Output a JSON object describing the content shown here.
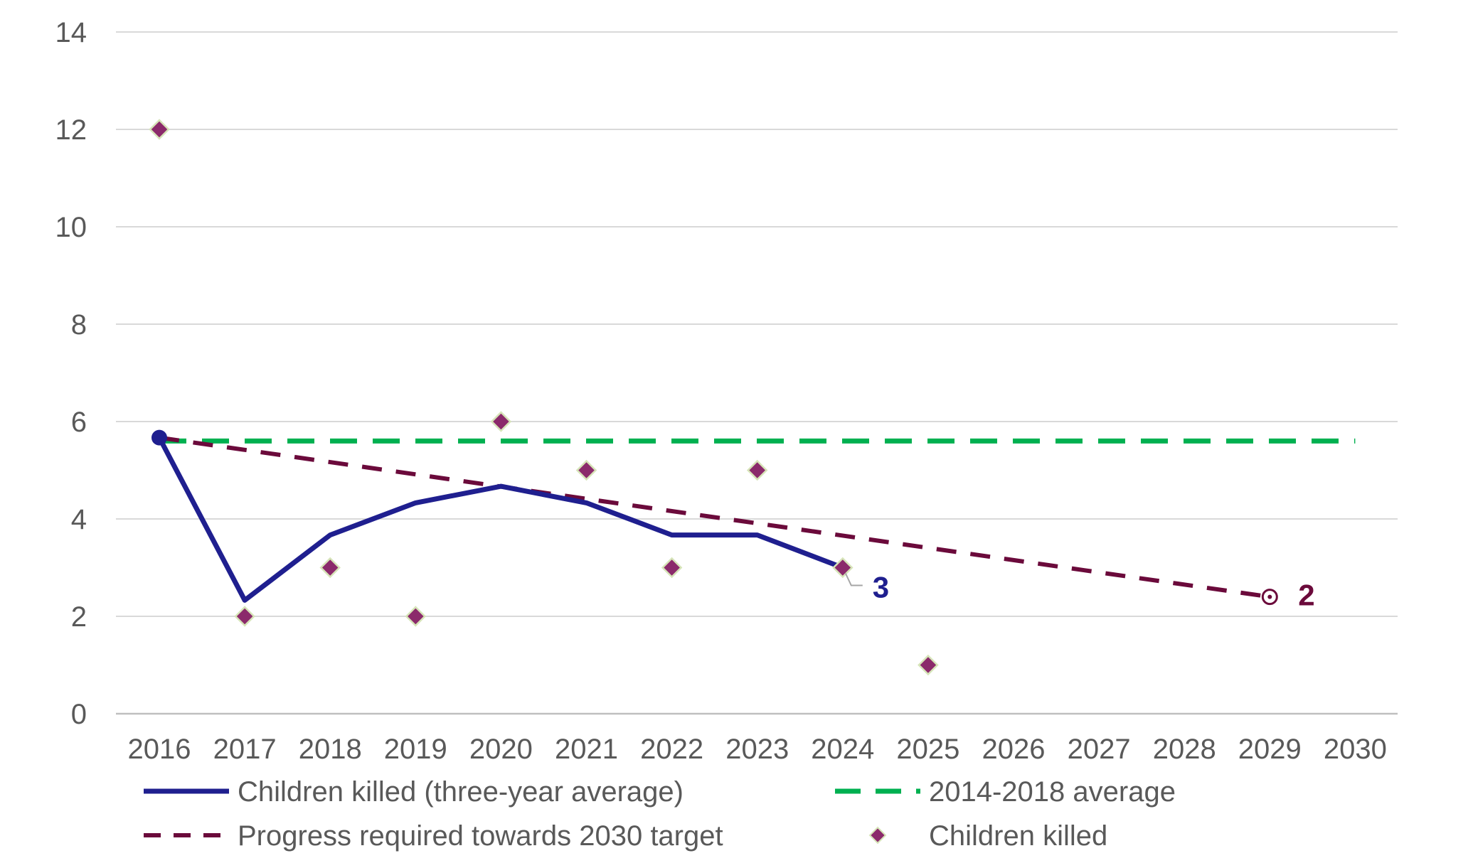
{
  "chart_data": {
    "type": "line",
    "title": "",
    "xlabel": "",
    "ylabel": "",
    "ylim": [
      0,
      14
    ],
    "y_ticks": [
      "0",
      "2",
      "4",
      "6",
      "8",
      "10",
      "12",
      "14"
    ],
    "categories": [
      "2016",
      "2017",
      "2018",
      "2019",
      "2020",
      "2021",
      "2022",
      "2023",
      "2024",
      "2025",
      "2026",
      "2027",
      "2028",
      "2029",
      "2030"
    ],
    "grid": true,
    "legend_position": "bottom",
    "series": [
      {
        "name": "Children killed (three-year average)",
        "style": "solid-line",
        "color": "#1f1f8f",
        "x": [
          "2016",
          "2017",
          "2018",
          "2019",
          "2020",
          "2021",
          "2022",
          "2023",
          "2024"
        ],
        "values": [
          5.67,
          2.33,
          3.67,
          4.33,
          4.67,
          4.33,
          3.67,
          3.67,
          3.0
        ],
        "end_label": "3"
      },
      {
        "name": "2014-2018 average",
        "style": "dashed-line",
        "color": "#00b050",
        "x": [
          "2016",
          "2030"
        ],
        "values": [
          5.6,
          5.6
        ]
      },
      {
        "name": "Progress required towards 2030 target",
        "style": "dashed-line",
        "color": "#6b0a3b",
        "x": [
          "2016",
          "2029"
        ],
        "values": [
          5.67,
          2.4
        ],
        "end_label": "2"
      },
      {
        "name": "Children killed",
        "style": "diamond-markers",
        "color": "#8b2a6b",
        "x": [
          "2016",
          "2017",
          "2018",
          "2019",
          "2020",
          "2021",
          "2022",
          "2023",
          "2024",
          "2025"
        ],
        "values": [
          12,
          2,
          3,
          2,
          6,
          5,
          3,
          5,
          3,
          1
        ]
      }
    ]
  }
}
